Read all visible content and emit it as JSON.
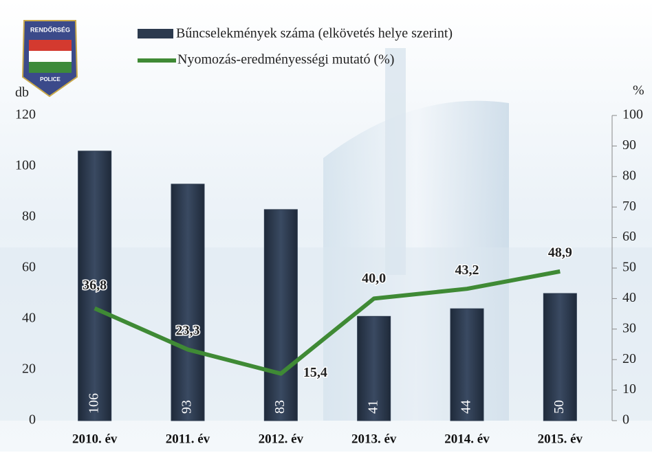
{
  "logo": {
    "top": "RENDŐRSÉG",
    "bottom": "POLICE"
  },
  "chart_data": {
    "type": "bar",
    "categories": [
      "2010. év",
      "2011. év",
      "2012. év",
      "2013. év",
      "2014. év",
      "2015. év"
    ],
    "series": [
      {
        "name": "Bűncselekmények száma (elkövetés helye szerint)",
        "color": "#2c3a4e",
        "type": "bar",
        "values": [
          106,
          93,
          83,
          41,
          44,
          50
        ]
      },
      {
        "name": "Nyomozás-eredményességi mutató (%)",
        "color": "#3f8a35",
        "type": "line",
        "axis": "y2",
        "values": [
          36.8,
          23.3,
          15.4,
          40.0,
          43.2,
          48.9
        ],
        "value_labels": [
          "36,8",
          "23,3",
          "15,4",
          "40,0",
          "43,2",
          "48,9"
        ]
      }
    ],
    "ylabel": "db",
    "y2label": "%",
    "ylim": [
      0,
      120
    ],
    "yticks": [
      0,
      20,
      40,
      60,
      80,
      100,
      120
    ],
    "y2lim": [
      0,
      100
    ],
    "y2ticks": [
      0,
      10,
      20,
      30,
      40,
      50,
      60,
      70,
      80,
      90,
      100
    ]
  }
}
